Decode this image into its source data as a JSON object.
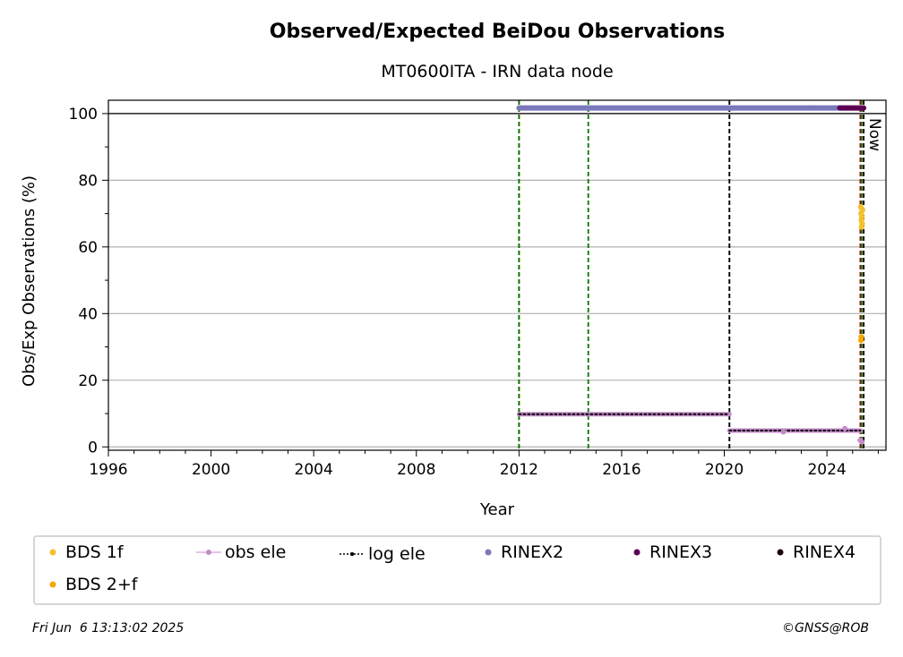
{
  "chart_data": {
    "type": "scatter",
    "title": "Observed/Expected BeiDou Observations",
    "subtitle": "MT0600ITA - IRN data node",
    "xlabel": "Year",
    "ylabel": "Obs/Exp Observations (%)",
    "xlim": [
      1996.0,
      2026.3
    ],
    "ylim": [
      -1,
      104
    ],
    "x_ticks": [
      1996,
      2000,
      2004,
      2008,
      2012,
      2016,
      2020,
      2024
    ],
    "y_ticks": [
      0,
      20,
      40,
      60,
      80,
      100
    ],
    "grid": "y",
    "reference_line_y": 100,
    "now_label": "Now",
    "vertical_lines": [
      {
        "x": 2012.0,
        "color": "#cc0000",
        "style": "dashed"
      },
      {
        "x": 2012.0,
        "color": "#007700",
        "style": "dashed"
      },
      {
        "x": 2014.7,
        "color": "#007700",
        "style": "dashed"
      },
      {
        "x": 2020.2,
        "color": "#1f5fa8",
        "style": "dashed"
      },
      {
        "x": 2020.2,
        "color": "#000000",
        "style": "dashed"
      },
      {
        "x": 2025.3,
        "color": "#cc0000",
        "style": "dashed"
      },
      {
        "x": 2025.35,
        "color": "#007700",
        "style": "dashed"
      },
      {
        "x": 2025.43,
        "color": "#000000",
        "style": "dashed"
      }
    ],
    "series": [
      {
        "name": "RINEX2",
        "color": "#7b78bb",
        "kind": "segment",
        "segments": [
          [
            2012.0,
            2014.7,
            101.7
          ],
          [
            2014.7,
            2023.4,
            101.7
          ],
          [
            2023.4,
            2024.5,
            101.7
          ]
        ]
      },
      {
        "name": "RINEX3",
        "color": "#5c0054",
        "kind": "segment",
        "segments": [
          [
            2024.5,
            2025.43,
            101.7
          ]
        ]
      },
      {
        "name": "obs ele",
        "color": "#c48ac9",
        "kind": "segment",
        "segments": [
          [
            2012.0,
            2020.2,
            9.8
          ],
          [
            2020.2,
            2025.3,
            4.9
          ]
        ]
      },
      {
        "name": "log ele",
        "color": "#000000",
        "kind": "segment",
        "segments": [
          [
            2012.0,
            2020.2,
            9.8
          ],
          [
            2020.2,
            2025.3,
            4.9
          ]
        ]
      },
      {
        "name": "BDS 1f",
        "color": "#f2c12e",
        "kind": "points",
        "x": [
          2025.32,
          2025.33,
          2025.34,
          2025.35,
          2025.36,
          2025.37,
          2025.38
        ],
        "y": [
          72,
          70,
          68,
          66,
          69,
          67,
          71
        ]
      },
      {
        "name": "BDS 2+f",
        "color": "#f5a800",
        "kind": "points",
        "x": [
          2025.33,
          2025.34
        ],
        "y": [
          32,
          33
        ]
      },
      {
        "name": "RINEX4",
        "color": "#1a0010",
        "kind": "none"
      }
    ],
    "extra_points": [
      {
        "x": 2025.3,
        "y": 2,
        "color": "#c48ac9"
      },
      {
        "x": 2025.36,
        "y": 1.5,
        "color": "#c48ac9"
      },
      {
        "x": 2024.7,
        "y": 5.5,
        "color": "#c48ac9"
      },
      {
        "x": 2022.3,
        "y": 4.5,
        "color": "#c48ac9"
      }
    ]
  },
  "legend": {
    "items": [
      {
        "label": "BDS 1f",
        "marker": "dot",
        "color": "#f2c12e"
      },
      {
        "label": "obs ele",
        "marker": "line-dot",
        "color": "#c48ac9"
      },
      {
        "label": "log ele",
        "marker": "dotted-line",
        "color": "#000000"
      },
      {
        "label": "RINEX2",
        "marker": "dot",
        "color": "#7b78bb"
      },
      {
        "label": "RINEX3",
        "marker": "dot",
        "color": "#5c0054"
      },
      {
        "label": "RINEX4",
        "marker": "dot",
        "color": "#1a0010"
      },
      {
        "label": "BDS 2+f",
        "marker": "dot",
        "color": "#f5a800"
      }
    ]
  },
  "footer": {
    "timestamp": "Fri Jun  6 13:13:02 2025",
    "credit": "©GNSS@ROB"
  }
}
